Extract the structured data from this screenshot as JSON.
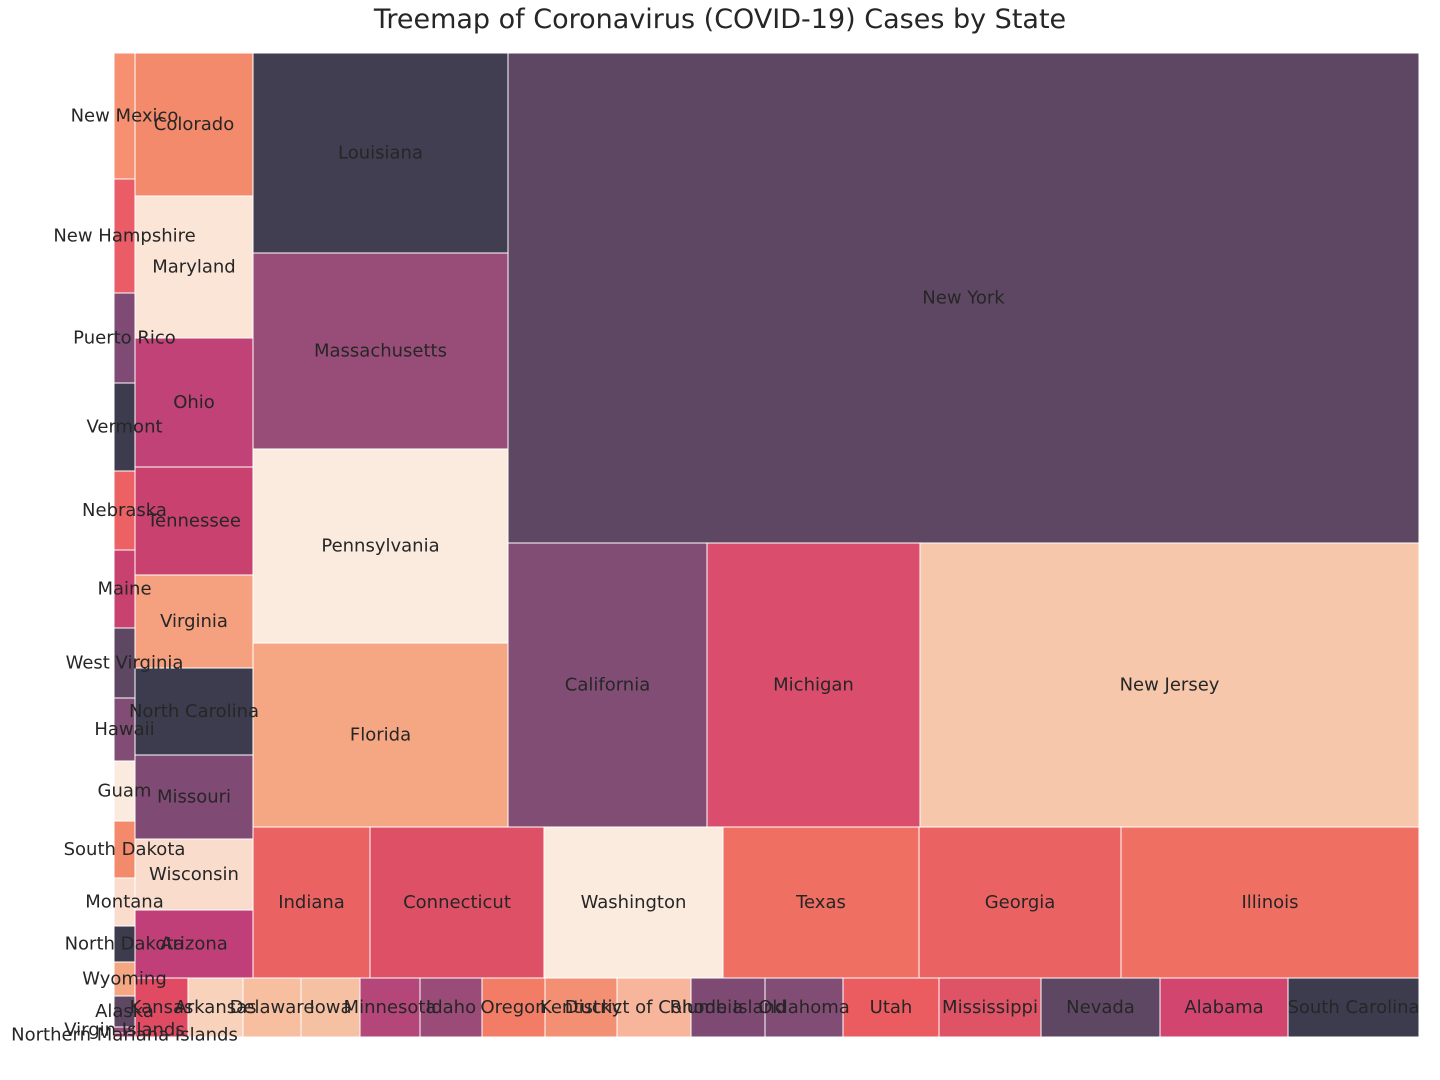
{
  "chart_data": {
    "type": "treemap",
    "title": "Treemap of Coronavirus (COVID-19) Cases by State",
    "palette_note": "rocket-style colormap",
    "cells": [
      {
        "label": "New York",
        "value": 151000,
        "color": "#5e4763"
      },
      {
        "label": "New Jersey",
        "value": 48000,
        "color": "#f6c7aa"
      },
      {
        "label": "Michigan",
        "value": 21000,
        "color": "#db4d6d"
      },
      {
        "label": "California",
        "value": 19600,
        "color": "#824d74"
      },
      {
        "label": "Louisiana",
        "value": 20000,
        "color": "#403e50"
      },
      {
        "label": "Massachusetts",
        "value": 19500,
        "color": "#974d78"
      },
      {
        "label": "Pennsylvania",
        "value": 19000,
        "color": "#fbebdf"
      },
      {
        "label": "Florida",
        "value": 18200,
        "color": "#f5a784"
      },
      {
        "label": "Illinois",
        "value": 15000,
        "color": "#ef6f62"
      },
      {
        "label": "Washington",
        "value": 10600,
        "color": "#fbebdf"
      },
      {
        "label": "Texas",
        "value": 11600,
        "color": "#ef6f62"
      },
      {
        "label": "Georgia",
        "value": 11900,
        "color": "#eb6263"
      },
      {
        "label": "Connecticut",
        "value": 10300,
        "color": "#de5066"
      },
      {
        "label": "Indiana",
        "value": 6900,
        "color": "#eb6263"
      },
      {
        "label": "Colorado",
        "value": 6600,
        "color": "#f48a6c"
      },
      {
        "label": "Maryland",
        "value": 6600,
        "color": "#fae5d7"
      },
      {
        "label": "Ohio",
        "value": 6000,
        "color": "#c14276"
      },
      {
        "label": "Tennessee",
        "value": 5000,
        "color": "#c9416f"
      },
      {
        "label": "Virginia",
        "value": 4300,
        "color": "#f5a07e"
      },
      {
        "label": "North Carolina",
        "value": 4000,
        "color": "#3d3c4e"
      },
      {
        "label": "Missouri",
        "value": 3900,
        "color": "#7f4a73"
      },
      {
        "label": "Wisconsin",
        "value": 3300,
        "color": "#f9dccc"
      },
      {
        "label": "Arizona",
        "value": 3100,
        "color": "#c13f78"
      },
      {
        "label": "South Carolina",
        "value": 3300,
        "color": "#3d3c4e"
      },
      {
        "label": "Alabama",
        "value": 3700,
        "color": "#d1456f"
      },
      {
        "label": "Nevada",
        "value": 3500,
        "color": "#5e4763"
      },
      {
        "label": "Mississippi",
        "value": 2900,
        "color": "#df5366"
      },
      {
        "label": "Utah",
        "value": 2800,
        "color": "#ea5c5f"
      },
      {
        "label": "Oklahoma",
        "value": 2200,
        "color": "#824d74"
      },
      {
        "label": "Rhode Island",
        "value": 2100,
        "color": "#7e4a73"
      },
      {
        "label": "District of Columbia",
        "value": 2100,
        "color": "#f7b69b"
      },
      {
        "label": "Kentucky",
        "value": 2000,
        "color": "#f38f73"
      },
      {
        "label": "Oregon",
        "value": 1800,
        "color": "#f37c66"
      },
      {
        "label": "Idaho",
        "value": 1700,
        "color": "#9a4b78"
      },
      {
        "label": "Minnesota",
        "value": 1700,
        "color": "#b4467a"
      },
      {
        "label": "Iowa",
        "value": 1700,
        "color": "#f6c1a3"
      },
      {
        "label": "Delaware",
        "value": 1600,
        "color": "#f7bea0"
      },
      {
        "label": "Arkansas",
        "value": 1600,
        "color": "#f9d2bc"
      },
      {
        "label": "Kansas",
        "value": 1500,
        "color": "#e04b63"
      },
      {
        "label": "New Mexico",
        "value": 1300,
        "color": "#f69070"
      },
      {
        "label": "New Hampshire",
        "value": 1100,
        "color": "#ea5c66"
      },
      {
        "label": "Puerto Rico",
        "value": 900,
        "color": "#7f4a73"
      },
      {
        "label": "Vermont",
        "value": 800,
        "color": "#3d3c4e"
      },
      {
        "label": "Nebraska",
        "value": 800,
        "color": "#ec6264"
      },
      {
        "label": "Maine",
        "value": 800,
        "color": "#c9416f"
      },
      {
        "label": "West Virginia",
        "value": 700,
        "color": "#5e4763"
      },
      {
        "label": "Hawaii",
        "value": 600,
        "color": "#824d74"
      },
      {
        "label": "Guam",
        "value": 600,
        "color": "#fbebdf"
      },
      {
        "label": "South Dakota",
        "value": 550,
        "color": "#f48a6c"
      },
      {
        "label": "Montana",
        "value": 400,
        "color": "#f9dccc"
      },
      {
        "label": "North Dakota",
        "value": 350,
        "color": "#3d3c4e"
      },
      {
        "label": "Wyoming",
        "value": 300,
        "color": "#f5a784"
      },
      {
        "label": "Alaska",
        "value": 300,
        "color": "#5e4763"
      },
      {
        "label": "Virgin Islands",
        "value": 100,
        "color": "#974d78"
      },
      {
        "label": "Northern Mariana Islands",
        "value": 50,
        "color": "#c14276"
      }
    ]
  }
}
